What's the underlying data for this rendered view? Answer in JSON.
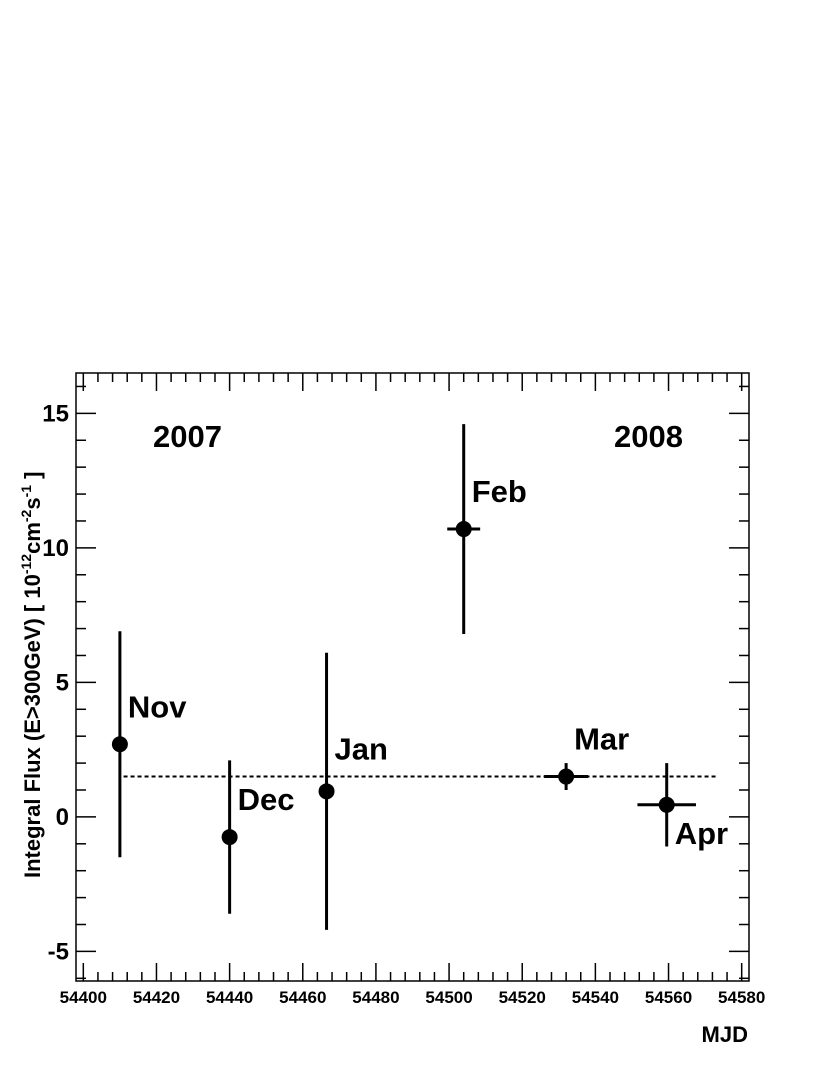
{
  "chart_data": {
    "type": "scatter",
    "xlabel": "MJD",
    "ylabel": "Integral Flux (E>300GeV) [ 10",
    "ylabel_parts": {
      "base": "Integral Flux (E>300GeV) [ 10",
      "exp1": "-12",
      "mid1": "cm",
      "exp2": "-2",
      "mid2": "s",
      "exp3": "-1",
      "end": " ]"
    },
    "xlim": [
      54398,
      54582
    ],
    "ylim": [
      -6.1,
      16.5
    ],
    "x_ticks": [
      54400,
      54420,
      54440,
      54460,
      54480,
      54500,
      54520,
      54540,
      54560,
      54580
    ],
    "x_tick_labels": [
      "54400",
      "54420",
      "54440",
      "54460",
      "54480",
      "54500",
      "54520",
      "54540",
      "54560",
      "54580"
    ],
    "y_ticks": [
      -5,
      0,
      5,
      10,
      15
    ],
    "y_tick_labels": [
      "-5",
      "0",
      "5",
      "10",
      "15"
    ],
    "reference_line": {
      "y": 1.5,
      "x_start": 54411,
      "x_end": 54573,
      "style": "dashed"
    },
    "points": [
      {
        "label": "Nov",
        "x": 54410,
        "y": 2.7,
        "y_low": -1.5,
        "y_high": 6.9,
        "x_err": 0
      },
      {
        "label": "Dec",
        "x": 54440,
        "y": -0.75,
        "y_low": -3.6,
        "y_high": 2.1,
        "x_err": 0
      },
      {
        "label": "Jan",
        "x": 54466.5,
        "y": 0.95,
        "y_low": -4.2,
        "y_high": 6.1,
        "x_err": 0
      },
      {
        "label": "Feb",
        "x": 54504,
        "y": 10.7,
        "y_low": 6.8,
        "y_high": 14.6,
        "x_err": 4.5
      },
      {
        "label": "Mar",
        "x": 54532,
        "y": 1.5,
        "y_low": 1.0,
        "y_high": 2.0,
        "x_err": 6
      },
      {
        "label": "Apr",
        "x": 54559.5,
        "y": 0.45,
        "y_low": -1.1,
        "y_high": 2.0,
        "x_err": 8
      }
    ],
    "annotations": [
      "2007",
      "2008"
    ],
    "grid": false,
    "legend": "none"
  }
}
